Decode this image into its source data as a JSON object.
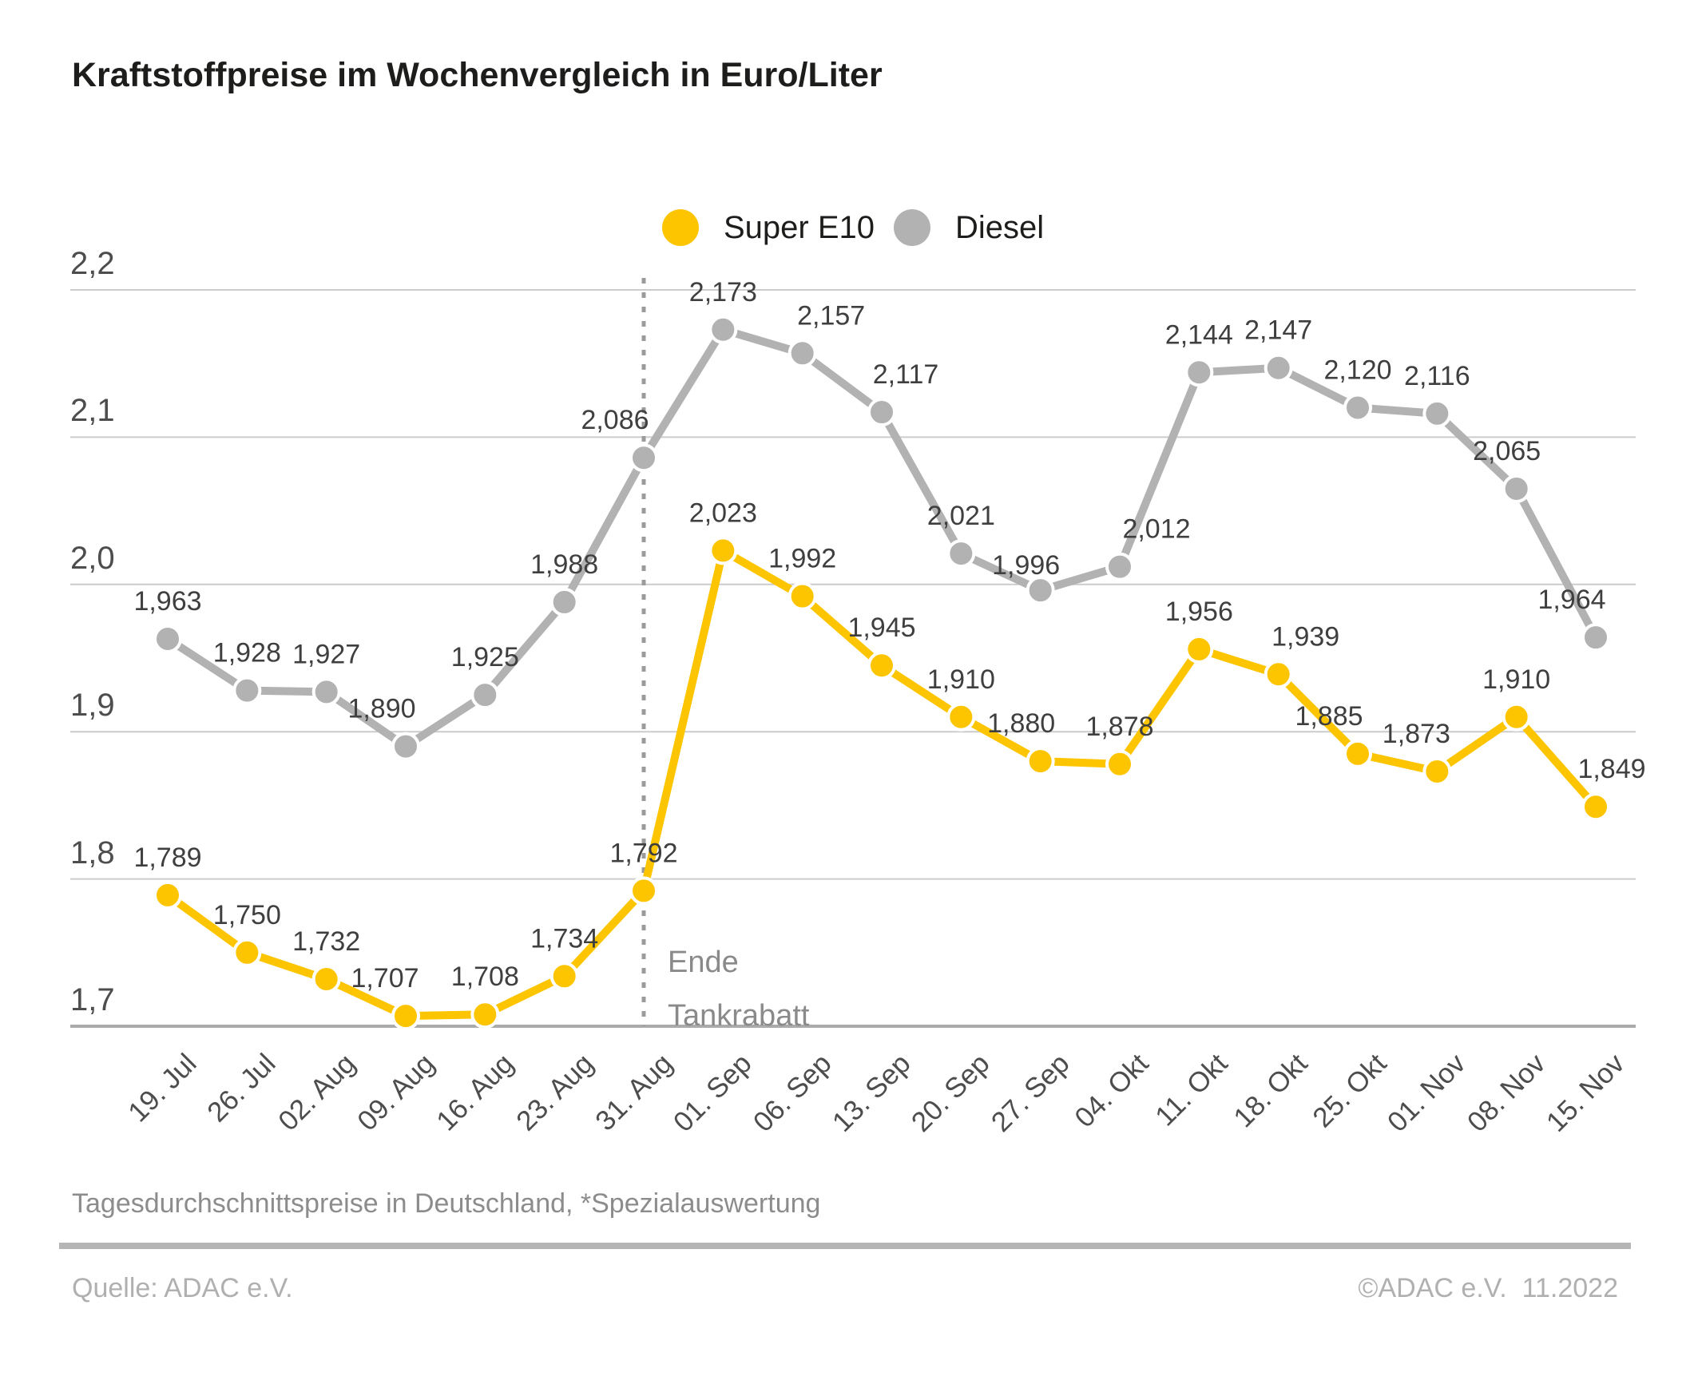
{
  "title": "Kraftstoffpreise im Wochenvergleich in Euro/Liter",
  "legend": {
    "items": [
      {
        "label": "Super E10",
        "color": "#fdc500"
      },
      {
        "label": "Diesel",
        "color": "#b2b2b2"
      }
    ]
  },
  "y_axis": {
    "tick_labels": [
      "2,2",
      "2,1",
      "2,0",
      "1,9",
      "1,8",
      "1,7"
    ]
  },
  "annotation": {
    "lines": [
      "Ende",
      "Tankrabatt"
    ]
  },
  "footnote": "Tagesdurchschnittspreise in Deutschland, *Spezialauswertung",
  "source": "Quelle: ADAC e.V.",
  "copyright": "©ADAC e.V.  11.2022",
  "colors": {
    "super_e10": "#fdc500",
    "diesel": "#b2b2b2",
    "gridline": "#cccccc",
    "axis_line": "#ababab",
    "dotted_line": "#9b9b9b",
    "value_label": "#3f3f3f",
    "tick_label": "#4d4d4d",
    "annotation_text": "#8a8a8a",
    "title_text": "#1d1d1b"
  },
  "chart_data": {
    "type": "line",
    "title": "Kraftstoffpreise im Wochenvergleich in Euro/Liter",
    "unit": "Euro/Liter",
    "categories": [
      "19. Jul",
      "26. Jul",
      "02. Aug",
      "09. Aug",
      "16. Aug",
      "23. Aug",
      "31. Aug",
      "01. Sep",
      "06. Sep",
      "13. Sep",
      "20. Sep",
      "27. Sep",
      "04. Okt",
      "11. Okt",
      "18. Okt",
      "25. Okt",
      "01. Nov",
      "08. Nov",
      "15. Nov"
    ],
    "series": [
      {
        "name": "Diesel",
        "color": "#b2b2b2",
        "values": [
          1.963,
          1.928,
          1.927,
          1.89,
          1.925,
          1.988,
          2.086,
          2.173,
          2.157,
          2.117,
          2.021,
          1.996,
          2.012,
          2.144,
          2.147,
          2.12,
          2.116,
          2.065,
          1.964
        ]
      },
      {
        "name": "Super E10",
        "color": "#fdc500",
        "values": [
          1.789,
          1.75,
          1.732,
          1.707,
          1.708,
          1.734,
          1.792,
          2.023,
          1.992,
          1.945,
          1.91,
          1.88,
          1.878,
          1.956,
          1.939,
          1.885,
          1.873,
          1.91,
          1.849
        ]
      }
    ],
    "ylim": [
      1.7,
      2.2
    ],
    "yticks": [
      2.2,
      2.1,
      2.0,
      1.9,
      1.8,
      1.7
    ],
    "grid": true,
    "legend_position": "top-center",
    "value_label_format": "decimal comma, 3 decimals",
    "annotation": {
      "text": "Ende Tankrabatt",
      "at_category": "31. Aug"
    }
  }
}
